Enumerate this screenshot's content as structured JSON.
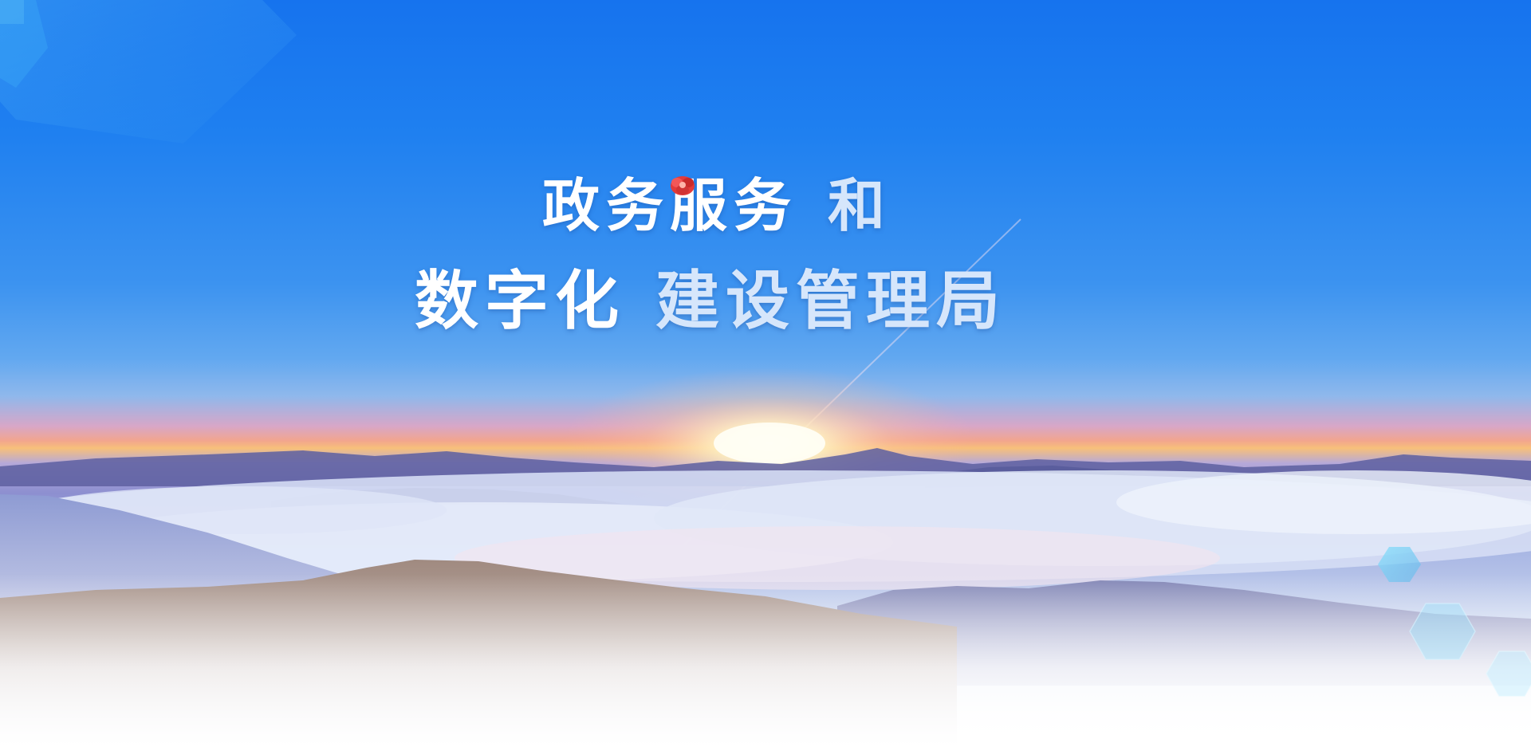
{
  "headline": {
    "line1_bright": "政务服务",
    "line1_soft": "和",
    "line2_bright": "数字化",
    "line2_soft": "建设管理局"
  },
  "colors": {
    "sky_top": "#1673ee",
    "sky_mid": "#3c93f0",
    "horizon_glow": "#f2a58e",
    "sun": "#fff6d8",
    "mountain": "#5b5f9e",
    "cloud": "#dfe6f7",
    "hexagon_accent": "#7fd3f5",
    "title_text": "#ffffff",
    "title_text_soft": "#d6e6fb"
  }
}
